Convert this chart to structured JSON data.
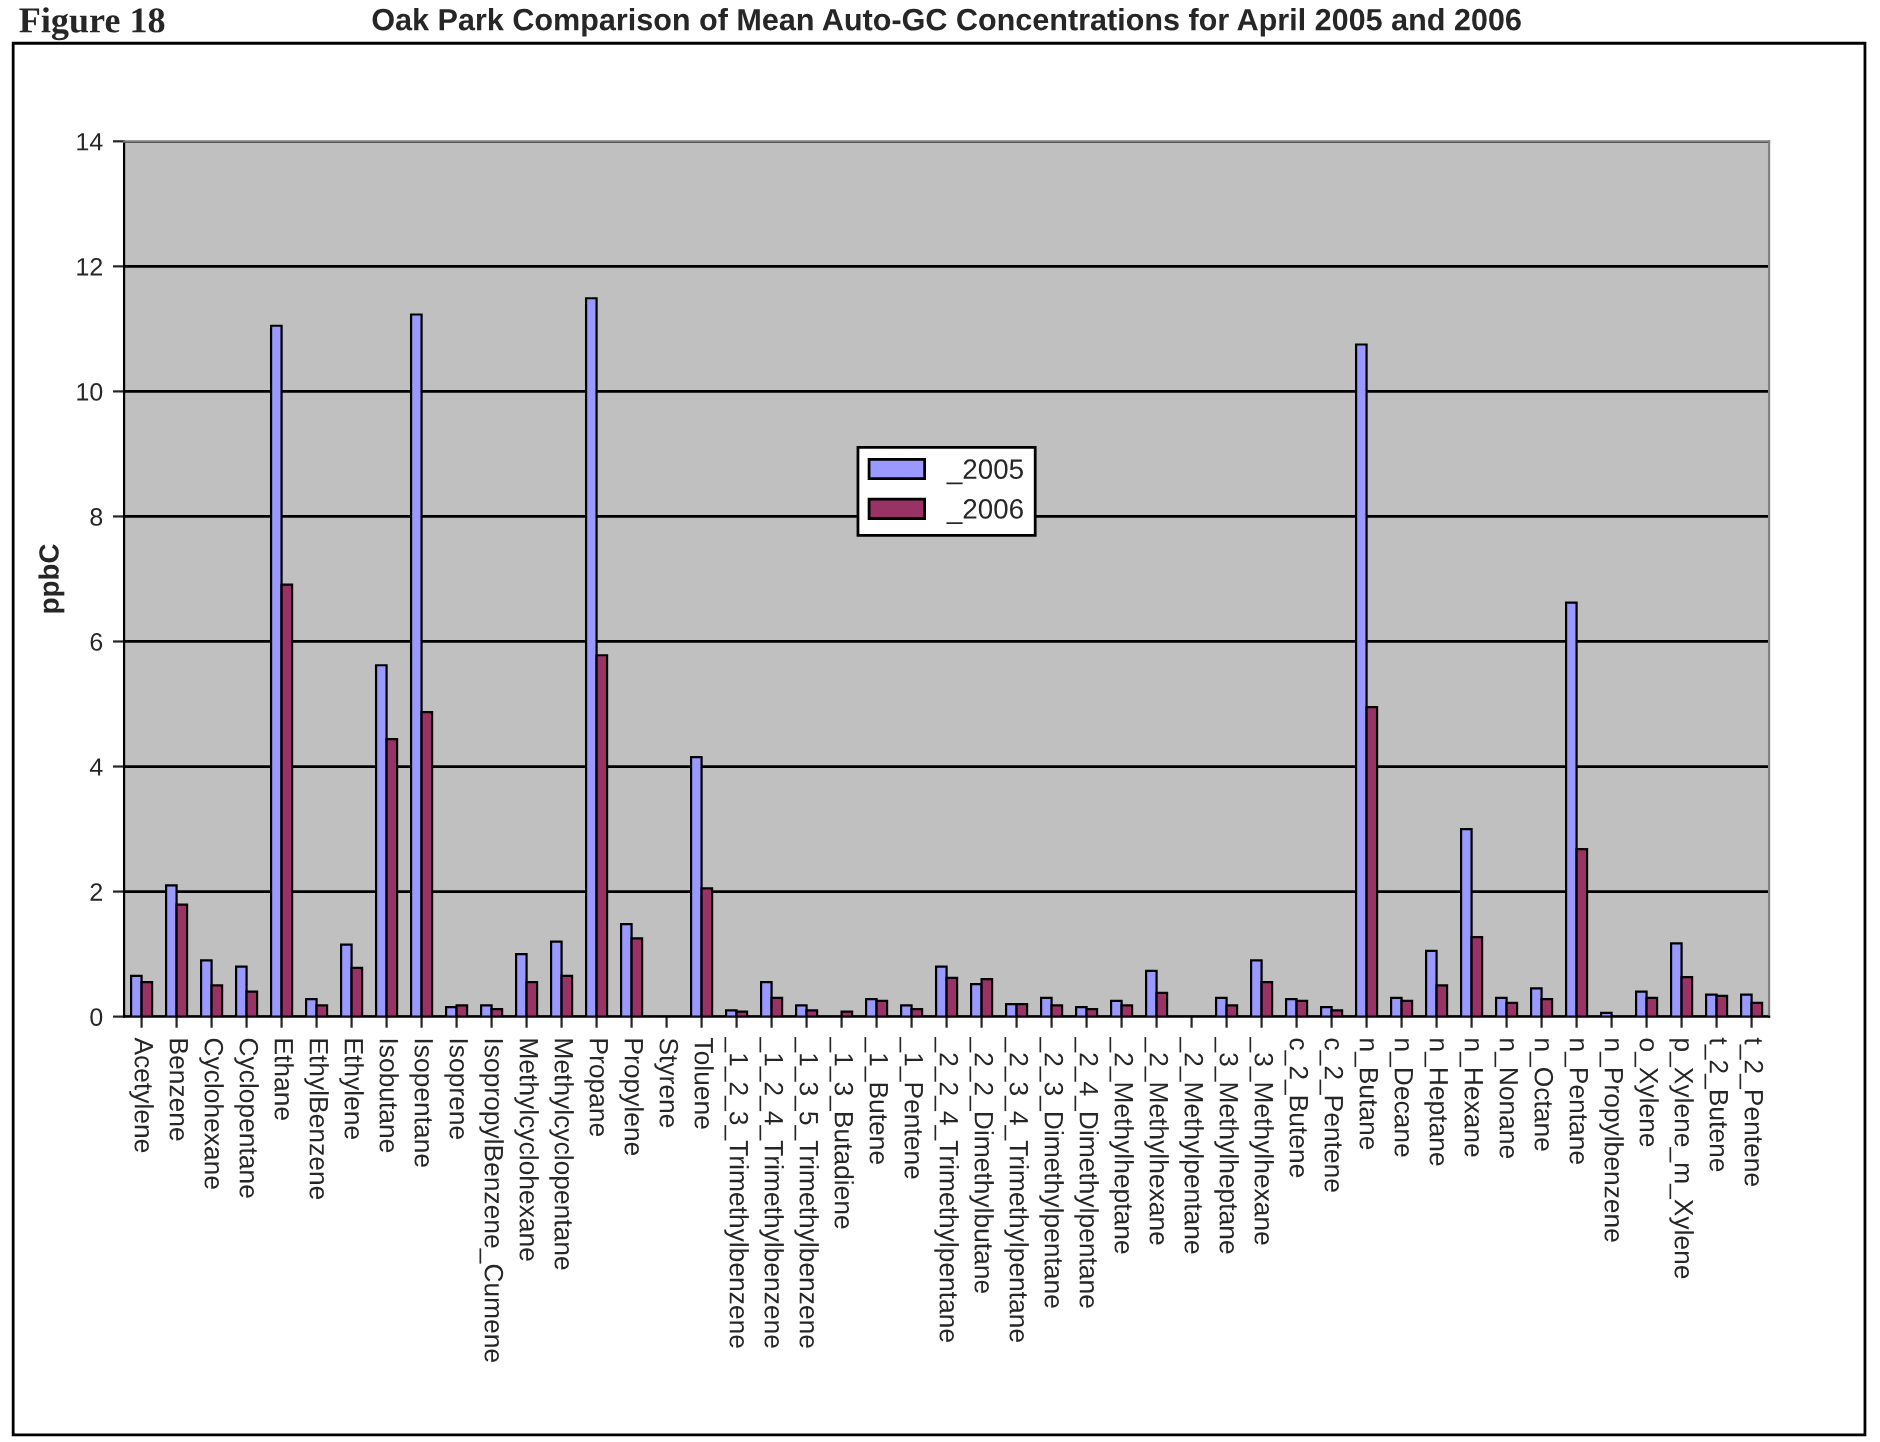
{
  "chart_data": {
    "type": "bar",
    "title": "Oak Park Comparison of Mean Auto-GC Concentrations for April 2005 and 2006",
    "ylabel": "ppbC",
    "annotations": [
      "Figure 18"
    ],
    "categories": [
      "Acetylene",
      "Benzene",
      "Cyclohexane",
      "Cyclopentane",
      "Ethane",
      "EthylBenzene",
      "Ethylene",
      "Isobutane",
      "Isopentane",
      "Isoprene",
      "IsopropylBenzene_Cumene",
      "Methylcyclohexane",
      "Methylcyclopentane",
      "Propane",
      "Propylene",
      "Styrene",
      "Toluene",
      "_1_2_3_Trimethylbenzene",
      "_1_2_4_Trimethylbenzene",
      "_1_3_5_Trimethylbenzene",
      "_1_3_Butadiene",
      "_1_Butene",
      "_1_Pentene",
      "_2_2_4_Trimethylpentane",
      "_2_2_Dimethylbutane",
      "_2_3_4_Trimethylpentane",
      "_2_3_Dimethylpentane",
      "_2_4_Dimethylpentane",
      "_2_Methylheptane",
      "_2_Methylhexane",
      "_2_Methylpentane",
      "_3_Methylheptane",
      "_3_Methylhexane",
      "c_2_Butene",
      "c_2_Pentene",
      "n_Butane",
      "n_Decane",
      "n_Heptane",
      "n_Hexane",
      "n_Nonane",
      "n_Octane",
      "n_Pentane",
      "n_Propylbenzene",
      "o_Xylene",
      "p_Xylene_m_Xylene",
      "t_2_Butene",
      "t_2_Pentene"
    ],
    "series": [
      {
        "name": "_2005",
        "color": "#9999ff",
        "values": [
          0.65,
          2.1,
          0.9,
          0.8,
          11.05,
          0.28,
          1.15,
          5.62,
          11.23,
          0.15,
          0.18,
          1.0,
          1.2,
          11.49,
          1.48,
          null,
          4.15,
          0.1,
          0.55,
          0.18,
          null,
          0.28,
          0.18,
          0.8,
          0.52,
          0.2,
          0.3,
          0.15,
          0.25,
          0.73,
          null,
          0.3,
          0.9,
          0.28,
          0.15,
          10.75,
          0.3,
          1.05,
          3.0,
          0.3,
          0.45,
          6.62,
          0.06,
          0.4,
          1.17,
          0.35,
          0.35
        ]
      },
      {
        "name": "_2006",
        "color": "#993366",
        "values": [
          0.55,
          1.79,
          0.5,
          0.4,
          6.91,
          0.18,
          0.78,
          4.44,
          4.87,
          0.18,
          0.12,
          0.55,
          0.65,
          5.78,
          1.25,
          null,
          2.05,
          0.08,
          0.3,
          0.1,
          0.08,
          0.25,
          0.12,
          0.62,
          0.6,
          0.2,
          0.18,
          0.12,
          0.18,
          0.38,
          null,
          0.18,
          0.55,
          0.25,
          0.1,
          4.95,
          0.25,
          0.5,
          1.27,
          0.22,
          0.28,
          2.68,
          null,
          0.3,
          0.63,
          0.33,
          0.22
        ]
      }
    ],
    "ylim": [
      0,
      14
    ],
    "yticks": [
      0,
      2,
      4,
      6,
      8,
      10,
      12,
      14
    ],
    "grid": "y",
    "legend": "center"
  }
}
